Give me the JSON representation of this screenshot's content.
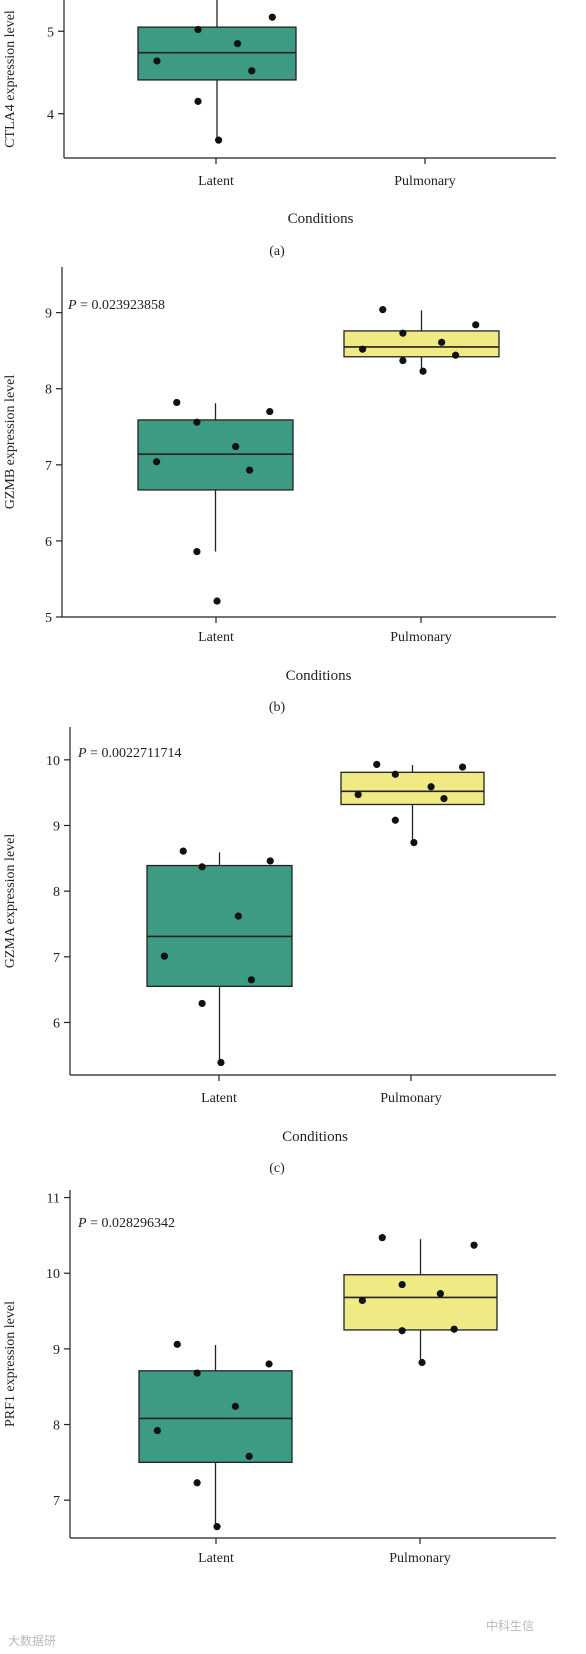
{
  "colors": {
    "latent": "#3c9b82",
    "pulmonary": "#f0ea84",
    "line": "#222222",
    "point": "#111111"
  },
  "watermark": {
    "left": "大数据研",
    "right": "中科生信"
  },
  "chart_data": [
    {
      "type": "box",
      "panel_label": "(a)",
      "ylabel": "CTLA4 expression level",
      "xlabel": "Conditions",
      "categories": [
        "Latent",
        "Pulmonary"
      ],
      "pvalue": "",
      "ylim": [
        3.5,
        5.5
      ],
      "yticks": [
        4,
        5
      ],
      "boxes": [
        {
          "name": "Latent",
          "q1": 4.41,
          "median": 4.74,
          "q3": 5.05,
          "whisker_low": 3.68,
          "whisker_high": 5.55,
          "points": [
            5.43,
            5.17,
            5.02,
            4.85,
            4.64,
            4.52,
            4.15,
            3.68
          ]
        },
        null
      ]
    },
    {
      "type": "box",
      "panel_label": "(b)",
      "ylabel": "GZMB expression level",
      "xlabel": "Conditions",
      "categories": [
        "Latent",
        "Pulmonary"
      ],
      "pvalue": "P = 0.023923858",
      "ylim": [
        5,
        9.6
      ],
      "yticks": [
        5,
        6,
        7,
        8,
        9
      ],
      "boxes": [
        {
          "name": "Latent",
          "q1": 6.67,
          "median": 7.14,
          "q3": 7.59,
          "whisker_low": 5.86,
          "whisker_high": 7.81,
          "points": [
            7.82,
            7.7,
            7.56,
            7.24,
            7.04,
            6.93,
            5.86,
            5.21
          ]
        },
        {
          "name": "Pulmonary",
          "q1": 8.42,
          "median": 8.55,
          "q3": 8.76,
          "whisker_low": 8.23,
          "whisker_high": 9.03,
          "points": [
            9.04,
            8.84,
            8.73,
            8.61,
            8.52,
            8.44,
            8.37,
            8.23
          ]
        }
      ]
    },
    {
      "type": "box",
      "panel_label": "(c)",
      "ylabel": "GZMA expression level",
      "xlabel": "Conditions",
      "categories": [
        "Latent",
        "Pulmonary"
      ],
      "pvalue": "P = 0.0022711714",
      "ylim": [
        5.2,
        10.5
      ],
      "yticks": [
        6,
        7,
        8,
        9,
        10
      ],
      "boxes": [
        {
          "name": "Latent",
          "q1": 6.55,
          "median": 7.31,
          "q3": 8.39,
          "whisker_low": 5.39,
          "whisker_high": 8.59,
          "points": [
            8.61,
            8.46,
            8.37,
            7.62,
            7.01,
            6.65,
            6.29,
            5.39
          ]
        },
        {
          "name": "Pulmonary",
          "q1": 9.32,
          "median": 9.52,
          "q3": 9.81,
          "whisker_low": 8.74,
          "whisker_high": 9.92,
          "points": [
            9.93,
            9.89,
            9.78,
            9.59,
            9.47,
            9.41,
            9.08,
            8.74
          ]
        }
      ]
    },
    {
      "type": "box",
      "panel_label": "",
      "ylabel": "PRF1 expression level",
      "xlabel": "",
      "categories": [
        "Latent",
        "Pulmonary"
      ],
      "pvalue": "P = 0.028296342",
      "ylim": [
        6.5,
        11.1
      ],
      "yticks": [
        7,
        8,
        9,
        10,
        11
      ],
      "boxes": [
        {
          "name": "Latent",
          "q1": 7.5,
          "median": 8.08,
          "q3": 8.71,
          "whisker_low": 6.65,
          "whisker_high": 9.05,
          "points": [
            9.06,
            8.8,
            8.68,
            8.24,
            7.92,
            7.58,
            7.23,
            6.65
          ]
        },
        {
          "name": "Pulmonary",
          "q1": 9.25,
          "median": 9.68,
          "q3": 9.98,
          "whisker_low": 8.82,
          "whisker_high": 10.45,
          "points": [
            10.47,
            10.37,
            9.85,
            9.73,
            9.64,
            9.26,
            9.24,
            8.82
          ]
        }
      ]
    }
  ]
}
